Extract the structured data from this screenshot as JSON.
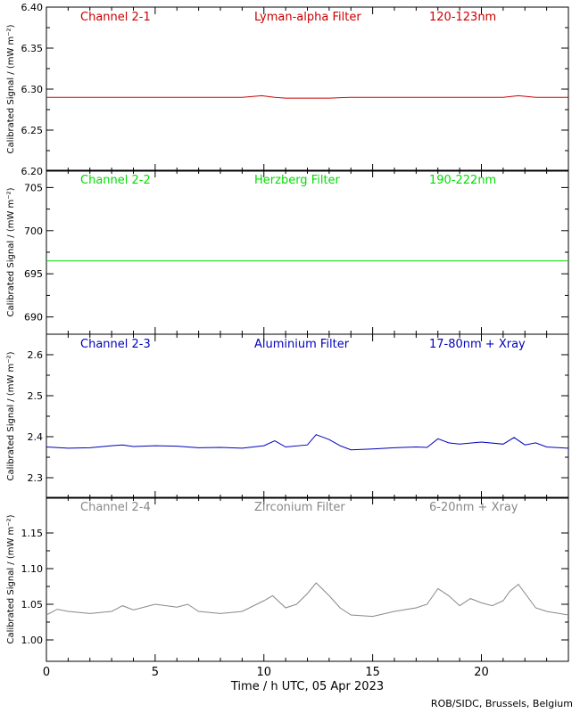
{
  "x_axis": {
    "label": "Time / h UTC, 05 Apr 2023",
    "range": [
      0,
      24
    ],
    "ticks": [
      0,
      5,
      10,
      15,
      20
    ]
  },
  "footer": "ROB/SIDC, Brussels, Belgium",
  "chart_data": [
    {
      "type": "line",
      "channel": "Channel 2-1",
      "filter": "Lyman-alpha Filter",
      "band": "120-123nm",
      "color": "#cc0000",
      "ylabel": "Calibrated Signal / (mW m⁻²)",
      "ylim": [
        6.2,
        6.4
      ],
      "yticks": [
        "6.20",
        "6.25",
        "6.30",
        "6.35",
        "6.40"
      ],
      "x": [
        0,
        2,
        4,
        6,
        7.5,
        9,
        9.9,
        10.5,
        11,
        12,
        13,
        14,
        16,
        18,
        20,
        21,
        21.7,
        22.5,
        24
      ],
      "y": [
        6.29,
        6.29,
        6.29,
        6.29,
        6.29,
        6.29,
        6.292,
        6.29,
        6.289,
        6.289,
        6.289,
        6.29,
        6.29,
        6.29,
        6.29,
        6.29,
        6.292,
        6.29,
        6.29
      ]
    },
    {
      "type": "line",
      "channel": "Channel 2-2",
      "filter": "Herzberg Filter",
      "band": "190-222nm",
      "color": "#00dd00",
      "ylabel": "Calibrated Signal / (mW m⁻²)",
      "ylim": [
        688,
        707
      ],
      "yticks": [
        "690",
        "695",
        "700",
        "705"
      ],
      "x": [
        0,
        4,
        8,
        12,
        16,
        20,
        24
      ],
      "y": [
        696.5,
        696.5,
        696.5,
        696.5,
        696.5,
        696.5,
        696.5
      ]
    },
    {
      "type": "line",
      "channel": "Channel 2-3",
      "filter": "Aluminium Filter",
      "band": "17-80nm + Xray",
      "color": "#0000bb",
      "ylabel": "Calibrated Signal / (mW m⁻²)",
      "ylim": [
        2.25,
        2.65
      ],
      "yticks": [
        "2.3",
        "2.4",
        "2.5",
        "2.6"
      ],
      "x": [
        0,
        1,
        2,
        3,
        3.5,
        4,
        5,
        6,
        7,
        8,
        9,
        10,
        10.5,
        11,
        12,
        12.4,
        13,
        13.5,
        14,
        15,
        16,
        17,
        17.5,
        18,
        18.5,
        19,
        20,
        21,
        21.5,
        22,
        22.5,
        23,
        24
      ],
      "y": [
        2.375,
        2.372,
        2.373,
        2.378,
        2.38,
        2.376,
        2.378,
        2.377,
        2.373,
        2.374,
        2.372,
        2.378,
        2.39,
        2.375,
        2.38,
        2.405,
        2.393,
        2.378,
        2.368,
        2.37,
        2.373,
        2.375,
        2.374,
        2.395,
        2.385,
        2.382,
        2.387,
        2.382,
        2.398,
        2.38,
        2.385,
        2.375,
        2.372
      ]
    },
    {
      "type": "line",
      "channel": "Channel 2-4",
      "filter": "Zirconium Filter",
      "band": "6-20nm + Xray",
      "color": "#888888",
      "ylabel": "Calibrated Signal / (mW m⁻²)",
      "ylim": [
        0.97,
        1.2
      ],
      "yticks": [
        "1.00",
        "1.05",
        "1.10",
        "1.15"
      ],
      "x": [
        0,
        0.5,
        1,
        2,
        3,
        3.5,
        4,
        5,
        6,
        6.5,
        7,
        8,
        9,
        10,
        10.4,
        11,
        11.5,
        12,
        12.4,
        13,
        13.5,
        14,
        15,
        16,
        17,
        17.5,
        18,
        18.5,
        19,
        19.5,
        20,
        20.5,
        21,
        21.3,
        21.7,
        22.5,
        23,
        24
      ],
      "y": [
        1.035,
        1.043,
        1.04,
        1.037,
        1.04,
        1.048,
        1.042,
        1.05,
        1.046,
        1.05,
        1.04,
        1.037,
        1.04,
        1.055,
        1.062,
        1.045,
        1.05,
        1.065,
        1.08,
        1.062,
        1.045,
        1.035,
        1.033,
        1.04,
        1.045,
        1.05,
        1.072,
        1.062,
        1.048,
        1.058,
        1.052,
        1.048,
        1.055,
        1.068,
        1.078,
        1.045,
        1.04,
        1.035
      ]
    }
  ]
}
